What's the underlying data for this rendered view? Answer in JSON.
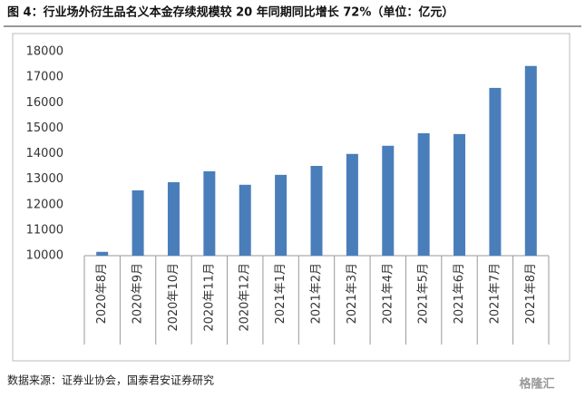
{
  "chart_data": {
    "type": "bar",
    "title": "图 4：行业场外衍生品名义本金存续规模较 20 年同期同比增长 72%（单位：亿元）",
    "source": "数据来源：证券业协会，国泰君安证券研究",
    "watermark": "格隆汇",
    "categories": [
      "2020年8月",
      "2020年9月",
      "2020年10月",
      "2020年11月",
      "2020年12月",
      "2021年1月",
      "2021年2月",
      "2021年3月",
      "2021年4月",
      "2021年5月",
      "2021年6月",
      "2021年7月",
      "2021年8月"
    ],
    "values": [
      10150,
      12560,
      12880,
      13310,
      12780,
      13170,
      13520,
      13990,
      14310,
      14800,
      14770,
      16580,
      17440
    ],
    "color": "#4a7ebb",
    "ylim": [
      10000,
      18000
    ],
    "yticks": [
      10000,
      11000,
      12000,
      13000,
      14000,
      15000,
      16000,
      17000,
      18000
    ],
    "grid": false
  }
}
